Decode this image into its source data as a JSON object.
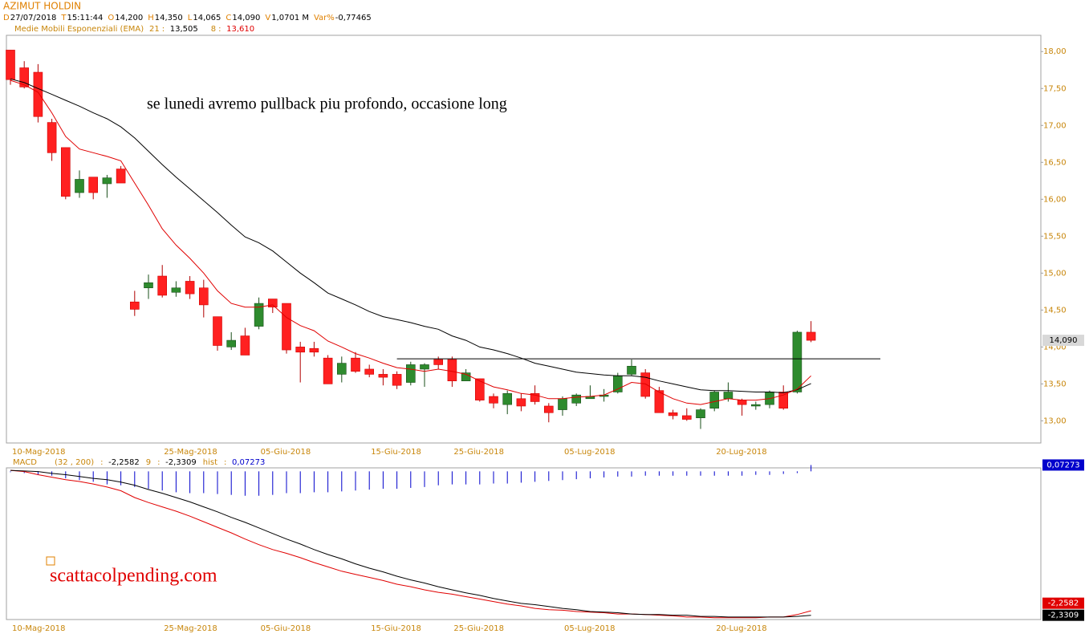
{
  "chart_data": [
    {
      "type": "candlestick",
      "title": "AZIMUT HOLDIN",
      "info": [
        {
          "key": "D",
          "text": "27/07/2018"
        },
        {
          "key": "T",
          "text": "15:11:44"
        },
        {
          "key": "O",
          "text": "14,200"
        },
        {
          "key": "H",
          "text": "14,350"
        },
        {
          "key": "L",
          "text": "14,065"
        },
        {
          "key": "C",
          "text": "14,090"
        },
        {
          "key": "V",
          "text": "1,0701 M"
        },
        {
          "key": "Var%",
          "text": "-0,77465"
        }
      ],
      "indicator": "Medie Mobili Esponenziali (EMA)",
      "categories": [
        "10-Mag-2018",
        null,
        null,
        null,
        null,
        null,
        null,
        null,
        null,
        null,
        null,
        "25-Mag-2018",
        null,
        null,
        null,
        null,
        null,
        null,
        "05-Giu-2018",
        null,
        null,
        null,
        null,
        null,
        null,
        null,
        "15-Giu-2018",
        null,
        null,
        null,
        null,
        null,
        "25-Giu-2018",
        null,
        null,
        null,
        null,
        null,
        null,
        null,
        "05-Lug-2018",
        null,
        null,
        null,
        null,
        null,
        null,
        null,
        null,
        null,
        null,
        "20-Lug-2018",
        null,
        null,
        null,
        null,
        null,
        null,
        null
      ],
      "open": [
        18.02,
        17.78,
        17.72,
        17.04,
        16.7,
        16.09,
        16.3,
        16.21,
        16.41,
        14.61,
        14.8,
        14.96,
        14.74,
        14.89,
        14.8,
        14.41,
        14.0,
        14.15,
        14.28,
        14.65,
        14.59,
        14.0,
        13.98,
        13.85,
        13.63,
        13.85,
        13.7,
        13.63,
        13.63,
        13.52,
        13.7,
        13.83,
        13.83,
        13.54,
        13.57,
        13.33,
        13.22,
        13.3,
        13.37,
        13.2,
        13.15,
        13.24,
        13.3,
        13.33,
        13.39,
        13.63,
        13.65,
        13.41,
        13.11,
        13.07,
        13.04,
        13.17,
        13.3,
        13.28,
        13.2,
        13.22,
        13.39,
        13.39,
        14.2
      ],
      "high": [
        18.02,
        17.87,
        17.83,
        17.09,
        16.7,
        16.39,
        16.3,
        16.33,
        16.45,
        14.76,
        14.98,
        15.11,
        14.89,
        14.96,
        14.91,
        14.41,
        14.2,
        14.26,
        14.67,
        14.65,
        14.59,
        14.07,
        14.07,
        13.89,
        13.87,
        13.93,
        13.76,
        13.7,
        13.67,
        13.8,
        13.78,
        13.87,
        13.87,
        13.7,
        13.57,
        13.37,
        13.41,
        13.37,
        13.48,
        13.24,
        13.33,
        13.37,
        13.48,
        13.43,
        13.65,
        13.83,
        13.7,
        13.46,
        13.15,
        13.17,
        13.17,
        13.41,
        13.52,
        13.3,
        13.26,
        13.41,
        13.48,
        14.22,
        14.35
      ],
      "low": [
        17.55,
        17.5,
        17.04,
        16.52,
        16.0,
        16.02,
        16.0,
        16.02,
        16.22,
        14.42,
        14.65,
        14.67,
        14.68,
        14.65,
        14.4,
        13.95,
        13.96,
        13.89,
        14.24,
        14.46,
        13.91,
        13.52,
        13.87,
        13.5,
        13.52,
        13.65,
        13.59,
        13.48,
        13.43,
        13.48,
        13.46,
        13.7,
        13.46,
        13.54,
        13.26,
        13.17,
        13.09,
        13.13,
        13.22,
        12.98,
        13.07,
        13.2,
        13.3,
        13.26,
        13.37,
        13.61,
        13.3,
        13.11,
        13.02,
        13.0,
        12.89,
        13.13,
        13.26,
        13.07,
        13.15,
        13.17,
        13.15,
        13.37,
        14.065
      ],
      "close": [
        17.62,
        17.52,
        17.12,
        16.63,
        16.04,
        16.27,
        16.09,
        16.29,
        16.22,
        14.51,
        14.87,
        14.7,
        14.8,
        14.72,
        14.57,
        14.02,
        14.09,
        13.89,
        14.59,
        14.54,
        13.96,
        13.93,
        13.93,
        13.5,
        13.78,
        13.67,
        13.63,
        13.59,
        13.48,
        13.76,
        13.76,
        13.76,
        13.54,
        13.65,
        13.28,
        13.24,
        13.37,
        13.2,
        13.26,
        13.11,
        13.3,
        13.35,
        13.33,
        13.35,
        13.61,
        13.74,
        13.33,
        13.11,
        13.07,
        13.02,
        13.15,
        13.39,
        13.39,
        13.22,
        13.22,
        13.39,
        13.17,
        14.2,
        14.09
      ],
      "up_color": "#2e8b2e",
      "down_color": "#ff2020",
      "series": [
        {
          "name": "21",
          "value_label": "13,505",
          "color": "#000000",
          "values": [
            17.63,
            17.58,
            17.5,
            17.42,
            17.34,
            17.26,
            17.17,
            17.09,
            16.98,
            16.83,
            16.65,
            16.47,
            16.3,
            16.14,
            15.98,
            15.82,
            15.65,
            15.49,
            15.41,
            15.3,
            15.15,
            15.0,
            14.87,
            14.73,
            14.65,
            14.57,
            14.48,
            14.41,
            14.37,
            14.33,
            14.28,
            14.24,
            14.15,
            14.09,
            14.0,
            13.96,
            13.91,
            13.85,
            13.78,
            13.74,
            13.7,
            13.66,
            13.64,
            13.62,
            13.61,
            13.61,
            13.59,
            13.54,
            13.5,
            13.46,
            13.42,
            13.41,
            13.41,
            13.4,
            13.39,
            13.39,
            13.38,
            13.42,
            13.505
          ]
        },
        {
          "name": "8",
          "value_label": "13,610",
          "color": "#e00000",
          "values": [
            17.61,
            17.55,
            17.45,
            17.17,
            16.85,
            16.68,
            16.63,
            16.58,
            16.52,
            16.22,
            15.92,
            15.6,
            15.38,
            15.2,
            15.0,
            14.76,
            14.59,
            14.54,
            14.54,
            14.57,
            14.4,
            14.29,
            14.22,
            14.08,
            14.0,
            13.91,
            13.85,
            13.78,
            13.72,
            13.7,
            13.67,
            13.7,
            13.67,
            13.63,
            13.54,
            13.46,
            13.42,
            13.37,
            13.35,
            13.3,
            13.3,
            13.32,
            13.33,
            13.35,
            13.43,
            13.52,
            13.5,
            13.39,
            13.3,
            13.24,
            13.22,
            13.26,
            13.3,
            13.28,
            13.28,
            13.3,
            13.35,
            13.43,
            13.61
          ]
        }
      ],
      "ylim": [
        12.7,
        18.22
      ],
      "yticks": [
        {
          "value": 13,
          "label": "13,00"
        },
        {
          "value": 13.5,
          "label": "13,50"
        },
        {
          "value": 14,
          "label": "14,00"
        },
        {
          "value": 14.5,
          "label": "14,50"
        },
        {
          "value": 15,
          "label": "15,00"
        },
        {
          "value": 15.5,
          "label": "15,50"
        },
        {
          "value": 16,
          "label": "16,00"
        },
        {
          "value": 16.5,
          "label": "16,50"
        },
        {
          "value": 17,
          "label": "17,00"
        },
        {
          "value": 17.5,
          "label": "17,50"
        },
        {
          "value": 18,
          "label": "18,00"
        }
      ],
      "support_line": {
        "value": 13.84,
        "start": 28
      },
      "annotation": "se lunedi avremo pullback piu profondo, occasione long",
      "watermark": "scattacolpending.com"
    },
    {
      "type": "macd",
      "title": "MACD",
      "series": [
        {
          "name": "(32 , 200)",
          "value_label": "-2,2582",
          "color": "#e00000",
          "values": [
            0.01,
            -0.01,
            -0.06,
            -0.1,
            -0.14,
            -0.17,
            -0.21,
            -0.26,
            -0.32,
            -0.43,
            -0.51,
            -0.58,
            -0.65,
            -0.73,
            -0.82,
            -0.91,
            -1.0,
            -1.1,
            -1.19,
            -1.27,
            -1.33,
            -1.4,
            -1.48,
            -1.55,
            -1.62,
            -1.67,
            -1.72,
            -1.77,
            -1.83,
            -1.87,
            -1.92,
            -1.96,
            -1.99,
            -2.03,
            -2.07,
            -2.11,
            -2.15,
            -2.18,
            -2.22,
            -2.24,
            -2.25,
            -2.27,
            -2.28,
            -2.29,
            -2.31,
            -2.31,
            -2.32,
            -2.33,
            -2.34,
            -2.36,
            -2.36,
            -2.37,
            -2.37,
            -2.37,
            -2.37,
            -2.36,
            -2.36,
            -2.32,
            -2.2582
          ]
        },
        {
          "name": "9",
          "value_label": "-2,3309",
          "color": "#000000",
          "values": [
            0.01,
            0.0,
            -0.01,
            -0.04,
            -0.06,
            -0.09,
            -0.12,
            -0.14,
            -0.18,
            -0.23,
            -0.3,
            -0.36,
            -0.43,
            -0.5,
            -0.58,
            -0.66,
            -0.75,
            -0.83,
            -0.92,
            -1.01,
            -1.1,
            -1.18,
            -1.27,
            -1.35,
            -1.42,
            -1.5,
            -1.57,
            -1.63,
            -1.7,
            -1.76,
            -1.81,
            -1.87,
            -1.92,
            -1.97,
            -2.01,
            -2.06,
            -2.1,
            -2.14,
            -2.16,
            -2.19,
            -2.22,
            -2.24,
            -2.27,
            -2.28,
            -2.29,
            -2.31,
            -2.32,
            -2.32,
            -2.33,
            -2.33,
            -2.35,
            -2.35,
            -2.36,
            -2.36,
            -2.36,
            -2.36,
            -2.36,
            -2.35,
            -2.3309
          ]
        }
      ],
      "histogram": {
        "name": "hist",
        "value_label": "0,07273",
        "color": "#0000cc",
        "values": [
          -0.01,
          -0.02,
          -0.04,
          -0.05,
          -0.08,
          -0.1,
          -0.12,
          -0.15,
          -0.16,
          -0.18,
          -0.2,
          -0.22,
          -0.24,
          -0.25,
          -0.25,
          -0.26,
          -0.27,
          -0.28,
          -0.28,
          -0.27,
          -0.25,
          -0.25,
          -0.24,
          -0.24,
          -0.23,
          -0.22,
          -0.21,
          -0.2,
          -0.2,
          -0.19,
          -0.18,
          -0.16,
          -0.15,
          -0.15,
          -0.15,
          -0.14,
          -0.14,
          -0.13,
          -0.12,
          -0.11,
          -0.1,
          -0.09,
          -0.08,
          -0.07,
          -0.06,
          -0.06,
          -0.05,
          -0.05,
          -0.05,
          -0.05,
          -0.05,
          -0.05,
          -0.05,
          -0.05,
          -0.04,
          -0.04,
          -0.03,
          -0.02,
          0.07273
        ]
      },
      "ylim": [
        -2.4,
        0.05
      ],
      "hist_ylim": [
        -1.7,
        0.04
      ]
    }
  ]
}
